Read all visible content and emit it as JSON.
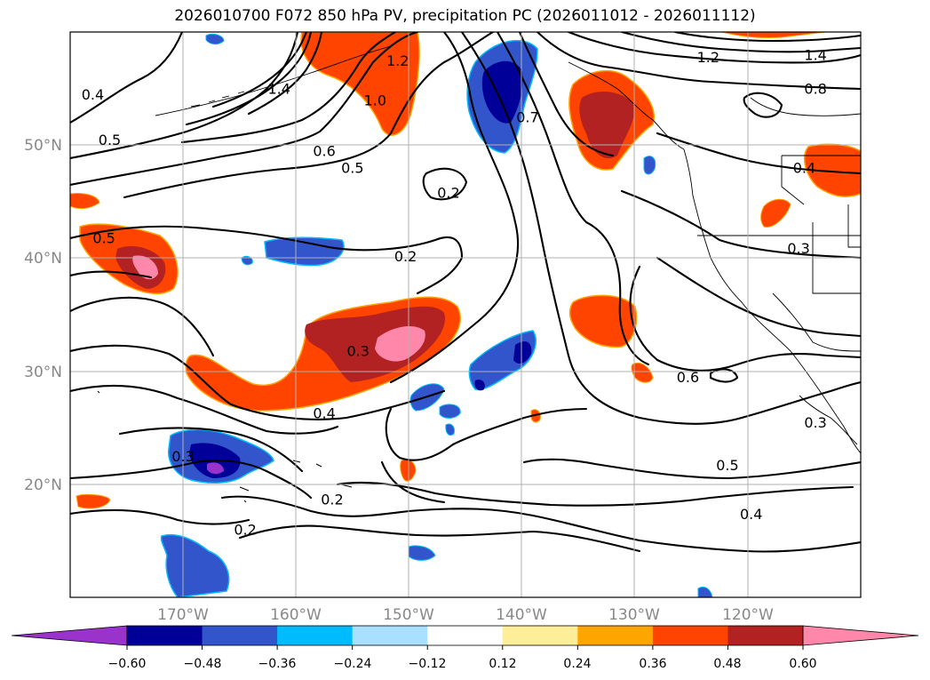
{
  "title": "2026010700 F072 850 hPa PV, precipitation PC (2026011012 - 2026011112)",
  "map": {
    "projection": "PlateCarree",
    "lon_range": [
      -180,
      -110
    ],
    "lat_range": [
      10,
      60
    ],
    "grid": true,
    "lat_ticks": [
      {
        "value": 50,
        "label": "50°N"
      },
      {
        "value": 40,
        "label": "40°N"
      },
      {
        "value": 30,
        "label": "30°N"
      },
      {
        "value": 20,
        "label": "20°N"
      }
    ],
    "lon_ticks": [
      {
        "value": -170,
        "label": "170°W"
      },
      {
        "value": -160,
        "label": "160°W"
      },
      {
        "value": -150,
        "label": "150°W"
      },
      {
        "value": -140,
        "label": "140°W"
      },
      {
        "value": -130,
        "label": "130°W"
      },
      {
        "value": -120,
        "label": "120°W"
      }
    ],
    "contour_labels": [
      {
        "text": "0.4",
        "lon": -178,
        "lat": 54.5
      },
      {
        "text": "0.5",
        "lon": -176.5,
        "lat": 50.5
      },
      {
        "text": "1.4",
        "lon": -161.5,
        "lat": 55
      },
      {
        "text": "1.2",
        "lon": -151,
        "lat": 57.5
      },
      {
        "text": "1.0",
        "lon": -153,
        "lat": 54
      },
      {
        "text": "0.6",
        "lon": -157.5,
        "lat": 49.5
      },
      {
        "text": "0.5",
        "lon": -155,
        "lat": 48
      },
      {
        "text": "0.2",
        "lon": -146.5,
        "lat": 45.8
      },
      {
        "text": "0.5",
        "lon": -177,
        "lat": 41.8
      },
      {
        "text": "0.2",
        "lon": -150.3,
        "lat": 40.2
      },
      {
        "text": "0.3",
        "lon": -154.5,
        "lat": 31.8
      },
      {
        "text": "0.4",
        "lon": -157.5,
        "lat": 26.3
      },
      {
        "text": "0.3",
        "lon": -170,
        "lat": 22.5
      },
      {
        "text": "0.2",
        "lon": -156.8,
        "lat": 18.7
      },
      {
        "text": "0.2",
        "lon": -164.5,
        "lat": 16
      },
      {
        "text": "0.7",
        "lon": -139.5,
        "lat": 52.5
      },
      {
        "text": "1.2",
        "lon": -123.5,
        "lat": 57.8
      },
      {
        "text": "1.4",
        "lon": -114,
        "lat": 58
      },
      {
        "text": "0.8",
        "lon": -114,
        "lat": 55
      },
      {
        "text": "0.4",
        "lon": -115,
        "lat": 48
      },
      {
        "text": "0.3",
        "lon": -115.5,
        "lat": 40.9
      },
      {
        "text": "0.6",
        "lon": -125.3,
        "lat": 29.5
      },
      {
        "text": "0.5",
        "lon": -121.8,
        "lat": 21.7
      },
      {
        "text": "0.4",
        "lon": -119.7,
        "lat": 17.4
      },
      {
        "text": "0.3",
        "lon": -114,
        "lat": 25.5
      }
    ]
  },
  "colorbar": {
    "extend": "both",
    "levels": [
      -0.72,
      -0.6,
      -0.48,
      -0.36,
      -0.24,
      -0.12,
      0.12,
      0.24,
      0.36,
      0.48,
      0.6,
      0.72
    ],
    "colors": [
      "#9933cc",
      "#000099",
      "#3355cc",
      "#00bbff",
      "#aae0ff",
      "#ffffff",
      "#ffee99",
      "#ffa500",
      "#ff4400",
      "#b22222",
      "#ff88aa"
    ],
    "tick_labels": [
      "−0.60",
      "−0.48",
      "−0.36",
      "−0.24",
      "−0.12",
      "0.12",
      "0.24",
      "0.36",
      "0.48",
      "0.60"
    ]
  }
}
